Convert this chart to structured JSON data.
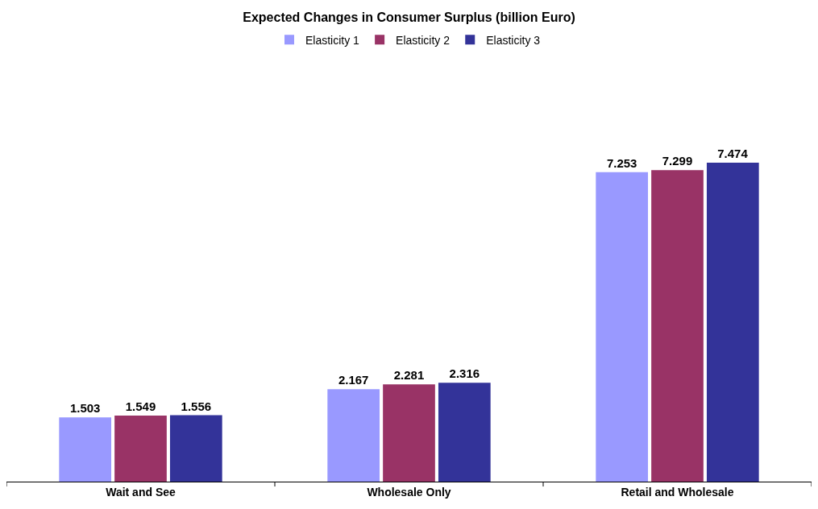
{
  "chart_data": {
    "type": "bar",
    "title": "Expected Changes in Consumer Surplus (billion Euro)",
    "categories": [
      "Wait and See",
      "Wholesale Only",
      "Retail and Wholesale"
    ],
    "series": [
      {
        "name": "Elasticity 1",
        "color": "#9999ff",
        "values": [
          1.503,
          2.167,
          7.253
        ]
      },
      {
        "name": "Elasticity 2",
        "color": "#993366",
        "values": [
          1.549,
          2.281,
          7.299
        ]
      },
      {
        "name": "Elasticity 3",
        "color": "#333399",
        "values": [
          1.556,
          2.316,
          7.474
        ]
      }
    ],
    "data_labels": true,
    "legend": "top",
    "tick_labels": "x"
  }
}
